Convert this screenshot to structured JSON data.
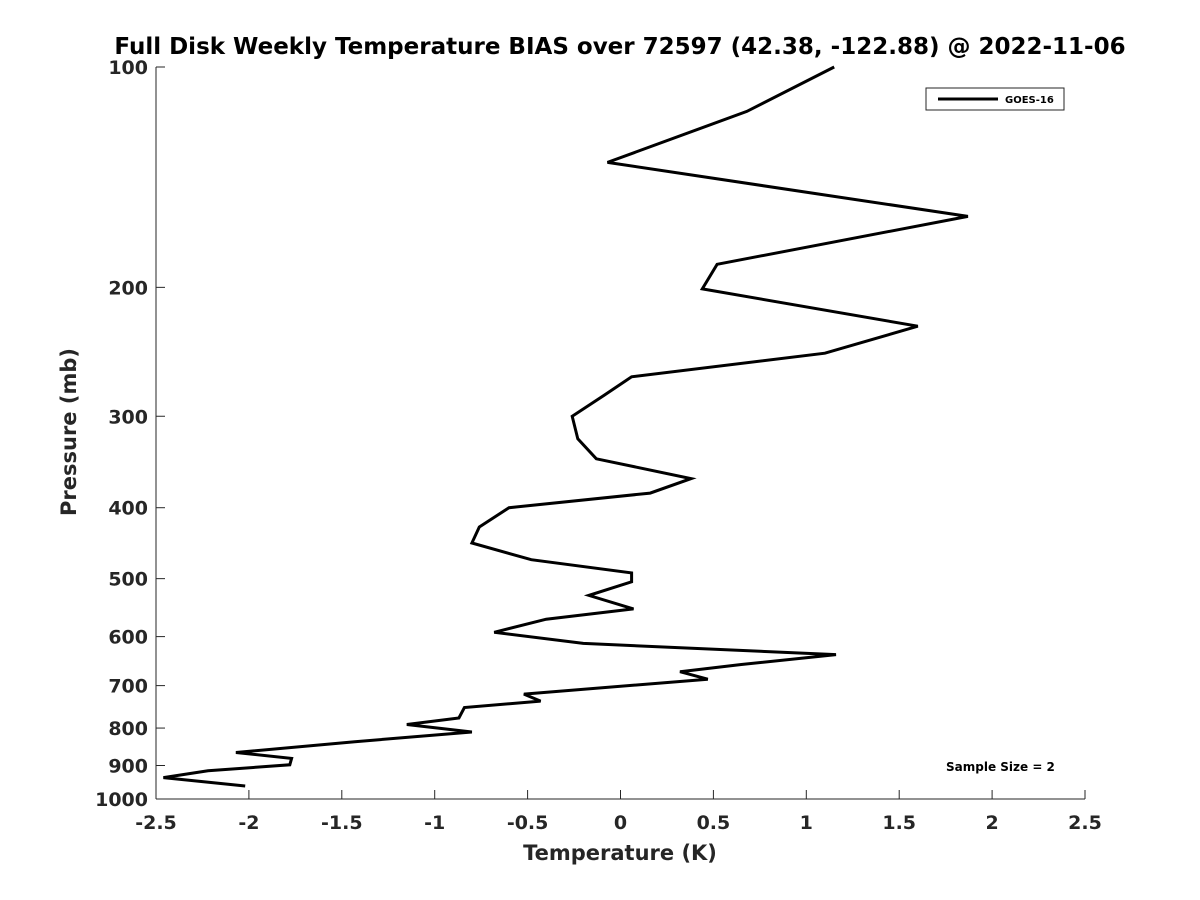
{
  "chart_data": {
    "type": "line",
    "title": "Full Disk Weekly Temperature BIAS over 72597 (42.38, -122.88) @ 2022-11-06",
    "xlabel": "Temperature (K)",
    "ylabel": "Pressure (mb)",
    "xlim": [
      -2.5,
      2.5
    ],
    "ylim": [
      100,
      1000
    ],
    "y_scale": "log",
    "y_reversed": true,
    "x_ticks": [
      "-2.5",
      "-2",
      "-1.5",
      "-1",
      "-0.5",
      "0",
      "0.5",
      "1",
      "1.5",
      "2",
      "2.5"
    ],
    "x_tick_values": [
      -2.5,
      -2,
      -1.5,
      -1,
      -0.5,
      0,
      0.5,
      1,
      1.5,
      2,
      2.5
    ],
    "y_ticks": [
      "100",
      "200",
      "300",
      "400",
      "500",
      "600",
      "700",
      "800",
      "900",
      "1000"
    ],
    "y_tick_values": [
      100,
      200,
      300,
      400,
      500,
      600,
      700,
      800,
      900,
      1000
    ],
    "grid": false,
    "legend_position": "top-right",
    "annotation": "Sample Size = 2",
    "series": [
      {
        "name": "GOES-16",
        "color": "#000000",
        "points": [
          [
            1.15,
            100
          ],
          [
            0.68,
            115
          ],
          [
            -0.07,
            135
          ],
          [
            1.87,
            160
          ],
          [
            0.52,
            186
          ],
          [
            0.44,
            201
          ],
          [
            1.6,
            226
          ],
          [
            1.1,
            246
          ],
          [
            0.06,
            265
          ],
          [
            -0.09,
            281
          ],
          [
            -0.26,
            300
          ],
          [
            -0.23,
            322
          ],
          [
            -0.13,
            343
          ],
          [
            0.38,
            365
          ],
          [
            0.16,
            382
          ],
          [
            -0.6,
            400
          ],
          [
            -0.76,
            425
          ],
          [
            -0.8,
            447
          ],
          [
            -0.48,
            471
          ],
          [
            0.06,
            491
          ],
          [
            0.06,
            505
          ],
          [
            -0.17,
            527
          ],
          [
            0.07,
            550
          ],
          [
            -0.4,
            568
          ],
          [
            -0.68,
            592
          ],
          [
            -0.2,
            613
          ],
          [
            1.16,
            635
          ],
          [
            0.65,
            655
          ],
          [
            0.32,
            670
          ],
          [
            0.47,
            686
          ],
          [
            -0.52,
            719
          ],
          [
            -0.43,
            735
          ],
          [
            -0.84,
            750
          ],
          [
            -0.87,
            775
          ],
          [
            -1.15,
            791
          ],
          [
            -0.8,
            810
          ],
          [
            -1.43,
            835
          ],
          [
            -2.07,
            864
          ],
          [
            -1.77,
            880
          ],
          [
            -1.78,
            898
          ],
          [
            -2.22,
            915
          ],
          [
            -2.46,
            935
          ],
          [
            -2.02,
            960
          ]
        ]
      }
    ]
  }
}
